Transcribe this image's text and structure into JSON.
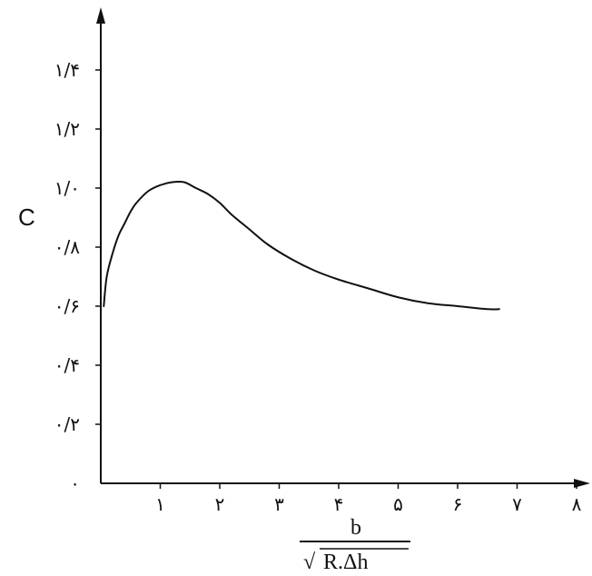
{
  "chart_data": {
    "type": "line",
    "title": "",
    "ylabel": "C",
    "xlabel_numerator": "b",
    "xlabel_denominator": "R.Δh",
    "xlabel_radical": "√",
    "xlim": [
      0,
      8
    ],
    "ylim": [
      0,
      1.4
    ],
    "grid": false,
    "x_ticks": [
      {
        "value": 1,
        "label": "۱"
      },
      {
        "value": 2,
        "label": "۲"
      },
      {
        "value": 3,
        "label": "۳"
      },
      {
        "value": 4,
        "label": "۴"
      },
      {
        "value": 5,
        "label": "۵"
      },
      {
        "value": 6,
        "label": "۶"
      },
      {
        "value": 7,
        "label": "۷"
      },
      {
        "value": 8,
        "label": "۸"
      }
    ],
    "y_ticks": [
      {
        "value": 0,
        "label": "۰"
      },
      {
        "value": 0.2,
        "label": "۰/۲"
      },
      {
        "value": 0.4,
        "label": "۰/۴"
      },
      {
        "value": 0.6,
        "label": "۰/۶"
      },
      {
        "value": 0.8,
        "label": "۰/۸"
      },
      {
        "value": 1.0,
        "label": "۱/۰"
      },
      {
        "value": 1.2,
        "label": "۱/۲"
      },
      {
        "value": 1.4,
        "label": "۱/۴"
      }
    ],
    "series": [
      {
        "color": "#111111",
        "x": [
          0.05,
          0.1,
          0.2,
          0.3,
          0.4,
          0.5,
          0.6,
          0.8,
          1.0,
          1.2,
          1.4,
          1.6,
          1.8,
          2.0,
          2.2,
          2.5,
          2.8,
          3.2,
          3.6,
          4.0,
          4.5,
          5.0,
          5.5,
          6.0,
          6.5,
          6.7
        ],
        "y": [
          0.6,
          0.7,
          0.78,
          0.84,
          0.88,
          0.92,
          0.95,
          0.99,
          1.01,
          1.02,
          1.02,
          1.0,
          0.98,
          0.95,
          0.91,
          0.86,
          0.81,
          0.76,
          0.72,
          0.69,
          0.66,
          0.63,
          0.61,
          0.6,
          0.59,
          0.59
        ]
      }
    ]
  }
}
